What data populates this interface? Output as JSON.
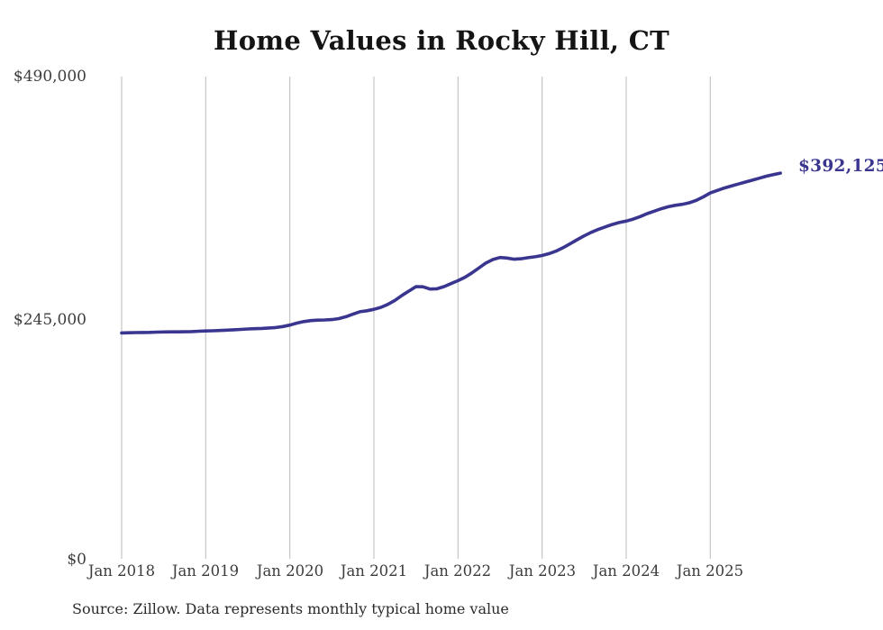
{
  "title": "Home Values in Rocky Hill, CT",
  "source_note": "Source: Zillow. Data represents monthly typical home value",
  "colors": {
    "background": "#ffffff",
    "title_text": "#141414",
    "tick_text": "#3d3d3d",
    "note_text": "#2b2b2b",
    "grid": "#c6c6c6",
    "line": "#3a3690",
    "annotation": "#3a3690"
  },
  "chart_data": {
    "type": "line",
    "title": "Home Values in Rocky Hill, CT",
    "xlabel": "",
    "ylabel": "",
    "ylim": [
      0,
      490000
    ],
    "grid": "vertical-only",
    "legend": "none",
    "series_name": "Monthly typical home value (USD)",
    "y_ticks": [
      {
        "value": 0,
        "label": "$0"
      },
      {
        "value": 245000,
        "label": "$245,000"
      },
      {
        "value": 490000,
        "label": "$490,000"
      }
    ],
    "x_tick_labels": [
      "Jan 2018",
      "Jan 2019",
      "Jan 2020",
      "Jan 2021",
      "Jan 2022",
      "Jan 2023",
      "Jan 2024",
      "Jan 2025"
    ],
    "months": [
      "2018-01",
      "2018-02",
      "2018-03",
      "2018-04",
      "2018-05",
      "2018-06",
      "2018-07",
      "2018-08",
      "2018-09",
      "2018-10",
      "2018-11",
      "2018-12",
      "2019-01",
      "2019-02",
      "2019-03",
      "2019-04",
      "2019-05",
      "2019-06",
      "2019-07",
      "2019-08",
      "2019-09",
      "2019-10",
      "2019-11",
      "2019-12",
      "2020-01",
      "2020-02",
      "2020-03",
      "2020-04",
      "2020-05",
      "2020-06",
      "2020-07",
      "2020-08",
      "2020-09",
      "2020-10",
      "2020-11",
      "2020-12",
      "2021-01",
      "2021-02",
      "2021-03",
      "2021-04",
      "2021-05",
      "2021-06",
      "2021-07",
      "2021-08",
      "2021-09",
      "2021-10",
      "2021-11",
      "2021-12",
      "2022-01",
      "2022-02",
      "2022-03",
      "2022-04",
      "2022-05",
      "2022-06",
      "2022-07",
      "2022-08",
      "2022-09",
      "2022-10",
      "2022-11",
      "2022-12",
      "2023-01",
      "2023-02",
      "2023-03",
      "2023-04",
      "2023-05",
      "2023-06",
      "2023-07",
      "2023-08",
      "2023-09",
      "2023-10",
      "2023-11",
      "2023-12",
      "2024-01",
      "2024-02",
      "2024-03",
      "2024-04",
      "2024-05",
      "2024-06",
      "2024-07",
      "2024-08",
      "2024-09",
      "2024-10",
      "2024-11",
      "2024-12",
      "2025-01",
      "2025-02",
      "2025-03",
      "2025-04",
      "2025-05",
      "2025-06",
      "2025-07",
      "2025-08",
      "2025-09",
      "2025-10",
      "2025-11"
    ],
    "values": [
      230000,
      230200,
      230400,
      230500,
      230600,
      230800,
      231000,
      231100,
      231100,
      231200,
      231400,
      231700,
      232000,
      232200,
      232500,
      232800,
      233200,
      233600,
      234000,
      234300,
      234600,
      235000,
      235500,
      236500,
      238000,
      240000,
      241500,
      242500,
      243000,
      243200,
      243500,
      244500,
      246500,
      249000,
      251500,
      252500,
      254000,
      256000,
      259000,
      263000,
      268000,
      272500,
      277000,
      276800,
      274500,
      274800,
      277000,
      280000,
      283000,
      286500,
      291000,
      296000,
      301000,
      304500,
      306500,
      306000,
      304800,
      305200,
      306300,
      307300,
      308500,
      310500,
      313000,
      316500,
      320500,
      324500,
      328500,
      332000,
      335000,
      337500,
      340000,
      342000,
      343500,
      345500,
      348000,
      351000,
      353500,
      356000,
      358000,
      359500,
      360500,
      362000,
      364500,
      368000,
      372000,
      374500,
      377000,
      379000,
      381000,
      383000,
      385000,
      387000,
      389000,
      390500,
      392125
    ],
    "last_value": 392125,
    "last_value_label": "$392,125"
  }
}
